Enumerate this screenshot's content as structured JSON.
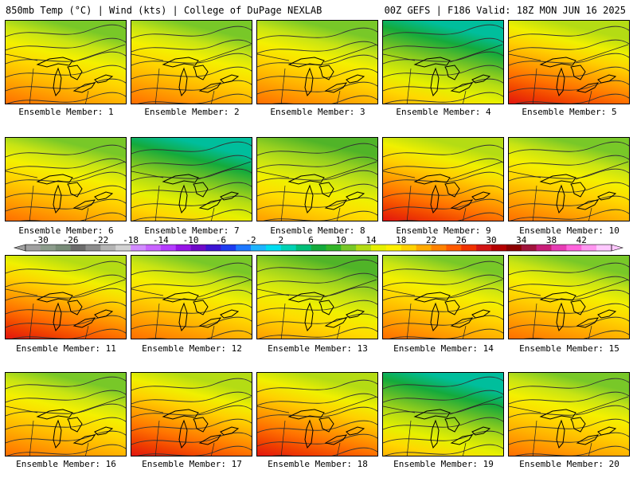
{
  "header": {
    "left_title": "850mb Temp (°C) | Wind (kts) | College of DuPage NEXLAB",
    "right_title": "00Z GEFS | F186 Valid: 18Z MON JUN 16 2025"
  },
  "panels": [
    {
      "label": "Ensemble Member: 1",
      "palette": "warm"
    },
    {
      "label": "Ensemble Member: 2",
      "palette": "warm"
    },
    {
      "label": "Ensemble Member: 3",
      "palette": "warm"
    },
    {
      "label": "Ensemble Member: 4",
      "palette": "cool"
    },
    {
      "label": "Ensemble Member: 5",
      "palette": "hot"
    },
    {
      "label": "Ensemble Member: 6",
      "palette": "warm"
    },
    {
      "label": "Ensemble Member: 7",
      "palette": "cool"
    },
    {
      "label": "Ensemble Member: 8",
      "palette": "mild"
    },
    {
      "label": "Ensemble Member: 9",
      "palette": "hot"
    },
    {
      "label": "Ensemble Member: 10",
      "palette": "warm"
    },
    {
      "label": "Ensemble Member: 11",
      "palette": "hot"
    },
    {
      "label": "Ensemble Member: 12",
      "palette": "warm"
    },
    {
      "label": "Ensemble Member: 13",
      "palette": "mild"
    },
    {
      "label": "Ensemble Member: 14",
      "palette": "warm"
    },
    {
      "label": "Ensemble Member: 15",
      "palette": "warm"
    },
    {
      "label": "Ensemble Member: 16",
      "palette": "warm"
    },
    {
      "label": "Ensemble Member: 17",
      "palette": "hot"
    },
    {
      "label": "Ensemble Member: 18",
      "palette": "hot"
    },
    {
      "label": "Ensemble Member: 19",
      "palette": "cool"
    },
    {
      "label": "Ensemble Member: 20",
      "palette": "warm"
    }
  ],
  "colorbar": {
    "tick_labels": [
      "-30",
      "-26",
      "-22",
      "-18",
      "-14",
      "-10",
      "-6",
      "-2",
      "2",
      "6",
      "10",
      "14",
      "18",
      "22",
      "26",
      "30",
      "34",
      "38",
      "42"
    ],
    "colors": [
      "#a0a0a0",
      "#8c9c8c",
      "#788c78",
      "#6c6c6c",
      "#8c8c8c",
      "#b4b4b4",
      "#d2d2d2",
      "#d28cff",
      "#c864ff",
      "#b43cff",
      "#9614e6",
      "#6e0ac8",
      "#3c14d2",
      "#1e3cf0",
      "#1e78ff",
      "#1eb4ff",
      "#00dcf0",
      "#00d2b4",
      "#00be78",
      "#14aa3c",
      "#32b428",
      "#78c828",
      "#b4dc14",
      "#e6f000",
      "#fff000",
      "#ffd200",
      "#ffaa00",
      "#ff8200",
      "#ff5a00",
      "#f03200",
      "#d21414",
      "#b40000",
      "#8c0000",
      "#a0143c",
      "#c81e78",
      "#e63cb4",
      "#ff64dc",
      "#ff96f0",
      "#ffc8ff"
    ]
  }
}
